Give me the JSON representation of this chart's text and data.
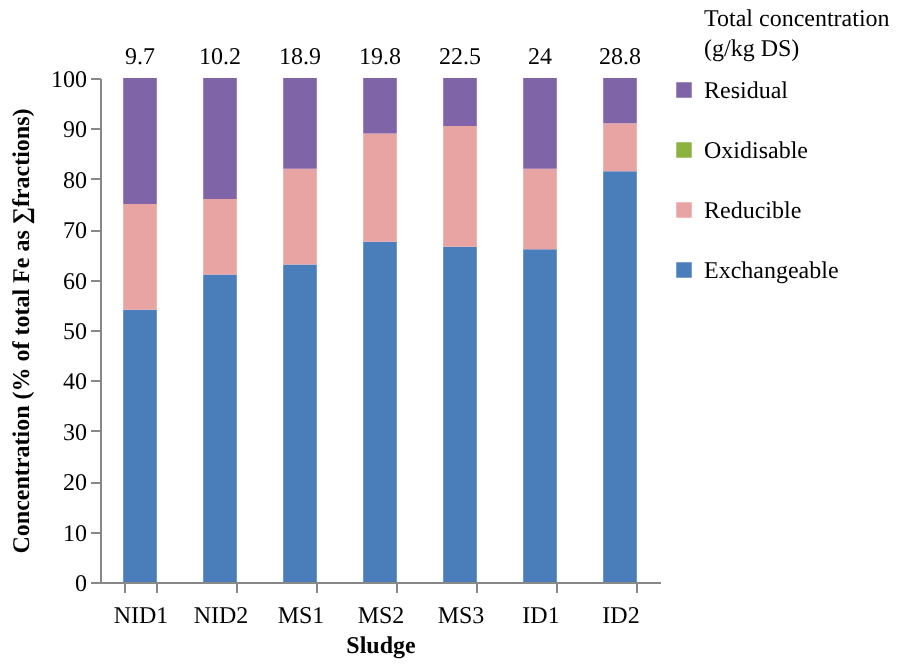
{
  "chart_data": {
    "type": "bar",
    "stacked": true,
    "xlabel": "Sludge",
    "ylabel": "Concentration (% of total Fe as ∑fractions)",
    "categories": [
      "NID1",
      "NID2",
      "MS1",
      "MS2",
      "MS3",
      "ID1",
      "ID2"
    ],
    "series": [
      {
        "name": "Exchangeable",
        "color": "#4a7ebb",
        "values": [
          54,
          61,
          63,
          67.5,
          66.5,
          66,
          81.5
        ]
      },
      {
        "name": "Reducible",
        "color": "#e8a3a3",
        "values": [
          21,
          15,
          19,
          21.5,
          24,
          16,
          9.5
        ]
      },
      {
        "name": "Oxidisable",
        "color": "#8cb33f",
        "values": [
          0,
          0,
          0,
          0,
          0,
          0,
          0
        ]
      },
      {
        "name": "Residual",
        "color": "#8064a8",
        "values": [
          25,
          24,
          18,
          11,
          9.5,
          18,
          9
        ]
      }
    ],
    "annotations": [
      "Total concentration (g/kg DS)",
      "9.7",
      "10.2",
      "18.9",
      "19.8",
      "22.5",
      "24",
      "28.8"
    ],
    "ylim": [
      0,
      100
    ],
    "yticks": [
      0,
      10,
      20,
      30,
      40,
      50,
      60,
      70,
      80,
      90,
      100
    ],
    "grid": false,
    "legend": "right"
  }
}
